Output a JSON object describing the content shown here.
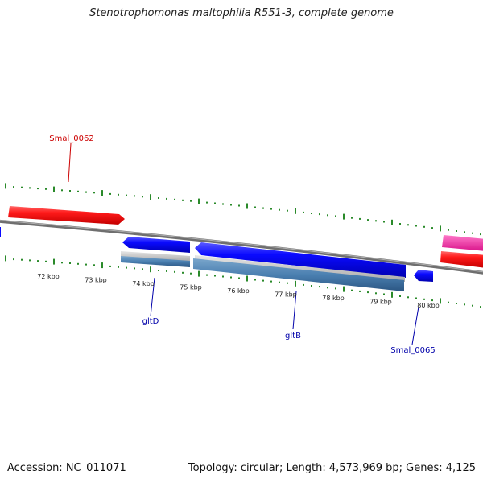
{
  "title": "Stenotrophomonas maltophilia R551-3, complete genome",
  "footer": {
    "accession": "Accession: NC_011071",
    "summary": "Topology: circular; Length: 4,573,969 bp; Genes: 4,125"
  },
  "colors": {
    "backbone": "#808080",
    "tick": "#2a8a2a",
    "forward_gene": "#ff1a1a",
    "forward_label": "#cc0000",
    "reverse_gene": "#0a0aff",
    "reverse_label": "#0000aa",
    "reverse_feature": "#4a7fb0",
    "pink_gene": "#ff2fa6"
  },
  "scale_labels": [
    "72 kbp",
    "73 kbp",
    "74 kbp",
    "75 kbp",
    "76 kbp",
    "77 kbp",
    "78 kbp",
    "79 kbp",
    "80 kbp"
  ],
  "gene_labels": {
    "smal_0062": "Smal_0062",
    "gltD": "gltD",
    "gltB": "gltB",
    "smal_0065": "Smal_0065"
  }
}
